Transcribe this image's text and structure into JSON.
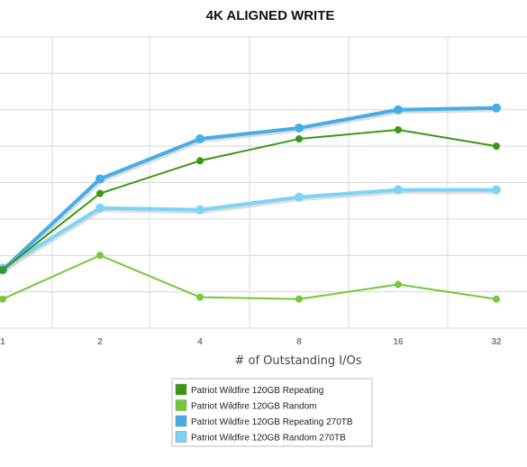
{
  "chart_data": {
    "type": "line",
    "title": "4K ALIGNED WRITE",
    "xlabel": "# of Outstanding I/Os",
    "ylabel": "",
    "categories": [
      "1",
      "2",
      "4",
      "8",
      "16",
      "32"
    ],
    "ylim": [
      0,
      8
    ],
    "grid": true,
    "legend_position": "bottom-center",
    "series": [
      {
        "name": "Patriot Wildfire 120GB Random 270TB",
        "color": "#7dd3f5",
        "values": [
          1.65,
          3.3,
          3.25,
          3.6,
          3.8,
          3.8
        ]
      },
      {
        "name": "Patriot Wildfire 120GB Repeating 270TB",
        "color": "#45ade8",
        "values": [
          1.6,
          4.1,
          5.2,
          5.5,
          6.0,
          6.05
        ]
      },
      {
        "name": "Patriot Wildfire 120GB Repeating",
        "color": "#3a9812",
        "values": [
          1.6,
          3.7,
          4.6,
          5.2,
          5.45,
          5.0
        ]
      },
      {
        "name": "Patriot Wildfire 120GB Random",
        "color": "#74c83a",
        "values": [
          0.8,
          2.0,
          0.85,
          0.8,
          1.2,
          0.8
        ]
      }
    ]
  },
  "legend": {
    "entries": [
      {
        "label": "Patriot Wildfire 120GB Repeating",
        "color": "#3a9812"
      },
      {
        "label": "Patriot Wildfire 120GB Random",
        "color": "#74c83a"
      },
      {
        "label": "Patriot Wildfire 120GB Repeating 270TB",
        "color": "#45ade8"
      },
      {
        "label": "Patriot Wildfire 120GB Random 270TB",
        "color": "#7dd3f5"
      }
    ]
  }
}
